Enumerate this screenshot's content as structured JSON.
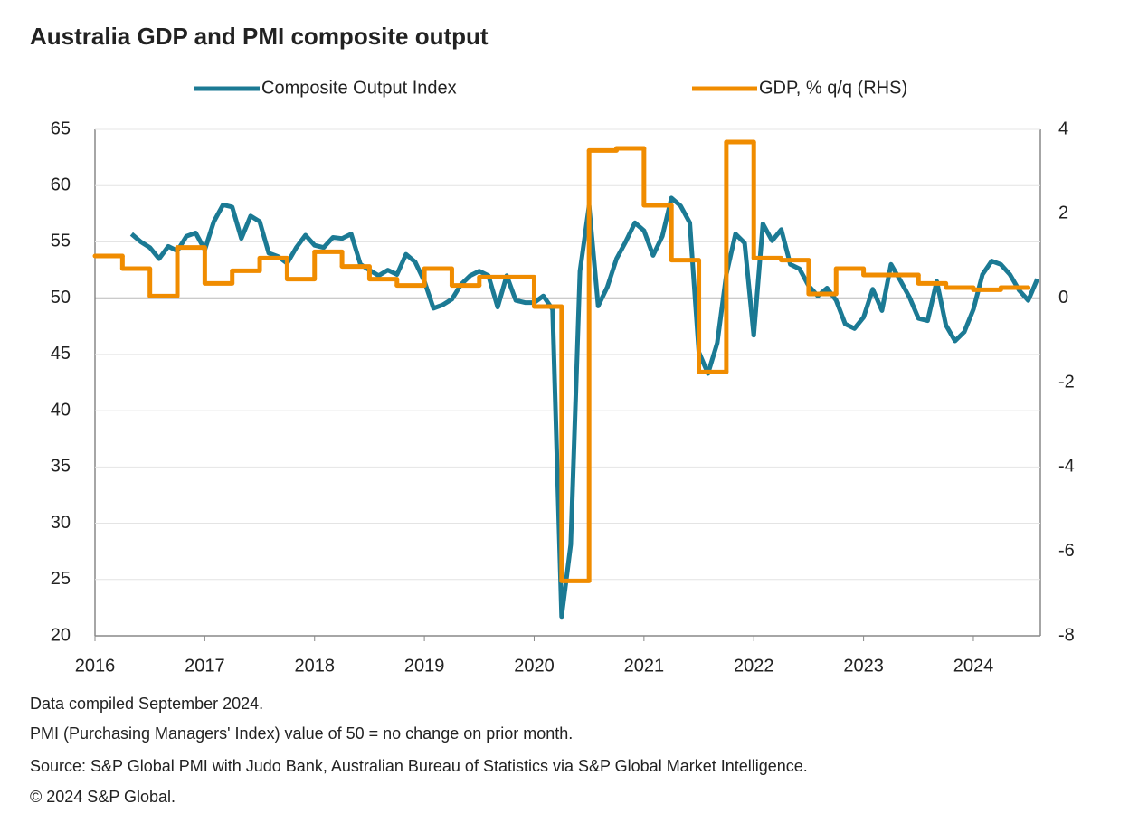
{
  "chart_data": {
    "type": "line",
    "title": "Australia GDP and PMI composite output",
    "notes": [
      "Data compiled September 2024.",
      "PMI (Purchasing Managers' Index) value of 50 = no change on prior month.",
      "Source: S&P Global PMI with Judo Bank, Australian Bureau of Statistics via S&P Global Market Intelligence.",
      "© 2024 S&P Global."
    ],
    "xlim": [
      2016,
      2024.61
    ],
    "xticks": [
      2016,
      2017,
      2018,
      2019,
      2020,
      2021,
      2022,
      2023,
      2024
    ],
    "ylim": [
      20,
      65
    ],
    "yticks": [
      20,
      25,
      30,
      35,
      40,
      45,
      50,
      55,
      60,
      65
    ],
    "y2lim": [
      -8,
      4
    ],
    "y2ticks": [
      -8,
      -6,
      -4,
      -2,
      0,
      2,
      4
    ],
    "grid": true,
    "reference_line": 50,
    "legend": "top",
    "series": [
      {
        "name": "Composite Output Index",
        "color": "#1b7a94",
        "axis": "y",
        "step": false,
        "x": [
          2016.333,
          2016.417,
          2016.5,
          2016.583,
          2016.667,
          2016.75,
          2016.833,
          2016.917,
          2017,
          2017.083,
          2017.167,
          2017.25,
          2017.333,
          2017.417,
          2017.5,
          2017.583,
          2017.667,
          2017.75,
          2017.833,
          2017.917,
          2018,
          2018.083,
          2018.167,
          2018.25,
          2018.333,
          2018.417,
          2018.5,
          2018.583,
          2018.667,
          2018.75,
          2018.833,
          2018.917,
          2019,
          2019.083,
          2019.167,
          2019.25,
          2019.333,
          2019.417,
          2019.5,
          2019.583,
          2019.667,
          2019.75,
          2019.833,
          2019.917,
          2020,
          2020.083,
          2020.167,
          2020.25,
          2020.333,
          2020.417,
          2020.5,
          2020.583,
          2020.667,
          2020.75,
          2020.833,
          2020.917,
          2021,
          2021.083,
          2021.167,
          2021.25,
          2021.333,
          2021.417,
          2021.5,
          2021.583,
          2021.667,
          2021.75,
          2021.833,
          2021.917,
          2022,
          2022.083,
          2022.167,
          2022.25,
          2022.333,
          2022.417,
          2022.5,
          2022.583,
          2022.667,
          2022.75,
          2022.833,
          2022.917,
          2023,
          2023.083,
          2023.167,
          2023.25,
          2023.333,
          2023.417,
          2023.5,
          2023.583,
          2023.667,
          2023.75,
          2023.833,
          2023.917,
          2024,
          2024.083,
          2024.167,
          2024.25,
          2024.333,
          2024.417,
          2024.5,
          2024.583
        ],
        "values": [
          55.7,
          55,
          54.5,
          53.5,
          54.6,
          54.2,
          55.5,
          55.8,
          54.3,
          56.8,
          58.3,
          58.1,
          55.3,
          57.3,
          56.8,
          54.0,
          53.7,
          53.1,
          54.5,
          55.6,
          54.7,
          54.5,
          55.4,
          55.3,
          55.7,
          53.0,
          52.5,
          52.0,
          52.5,
          52.1,
          53.9,
          53.2,
          51.5,
          49.1,
          49.4,
          49.9,
          51.2,
          52.0,
          52.4,
          52.0,
          49.2,
          52.0,
          49.8,
          49.6,
          49.6,
          50.2,
          49.0,
          21.7,
          28.1,
          52.4,
          58.2,
          49.3,
          51.0,
          53.5,
          55.0,
          56.7,
          56.0,
          53.8,
          55.5,
          58.9,
          58.2,
          56.7,
          45.2,
          43.3,
          46.0,
          52.1,
          55.7,
          54.9,
          46.7,
          56.6,
          55.1,
          56.1,
          53.0,
          52.6,
          51.1,
          50.2,
          50.9,
          49.8,
          47.7,
          47.3,
          48.3,
          50.8,
          48.9,
          53.0,
          51.6,
          50.1,
          48.2,
          48.0,
          51.5,
          47.6,
          46.2,
          47.0,
          49.0,
          52.1,
          53.3,
          53.0,
          52.1,
          50.7,
          49.8,
          51.7
        ]
      },
      {
        "name": "GDP, % q/q (RHS)",
        "color": "#f08c00",
        "axis": "y2",
        "step": true,
        "x": [
          2016,
          2016.25,
          2016.5,
          2016.75,
          2017,
          2017.25,
          2017.5,
          2017.75,
          2018,
          2018.25,
          2018.5,
          2018.75,
          2019,
          2019.25,
          2019.5,
          2019.75,
          2020,
          2020.25,
          2020.5,
          2020.75,
          2021,
          2021.25,
          2021.5,
          2021.75,
          2022,
          2022.25,
          2022.5,
          2022.75,
          2023,
          2023.25,
          2023.5,
          2023.75,
          2024,
          2024.25
        ],
        "values": [
          1.0,
          0.7,
          0.05,
          1.2,
          0.35,
          0.65,
          0.95,
          0.45,
          1.1,
          0.75,
          0.45,
          0.3,
          0.7,
          0.3,
          0.5,
          0.5,
          -0.2,
          -6.7,
          3.5,
          3.55,
          2.2,
          0.9,
          -1.75,
          3.7,
          0.95,
          0.9,
          0.1,
          0.7,
          0.55,
          0.55,
          0.35,
          0.25,
          0.2,
          0.25
        ]
      }
    ]
  }
}
